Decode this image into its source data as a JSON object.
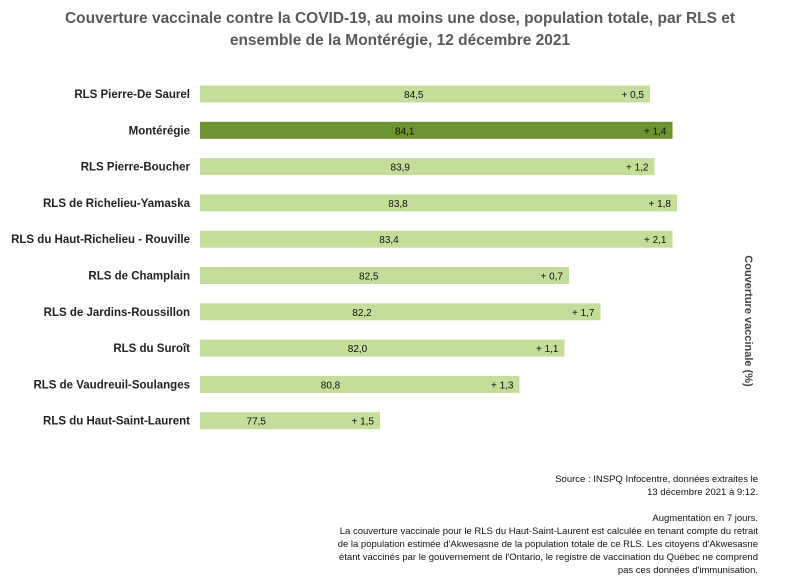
{
  "chart_data": {
    "type": "bar",
    "orientation": "horizontal",
    "stacked": true,
    "title": "Couverture vaccinale contre la COVID-19, au moins une dose, population totale, par RLS et ensemble de la Montérégie, 12 décembre 2021",
    "ylabel": "Couverture vaccinale (%)",
    "categories": [
      "RLS Pierre-De Saurel",
      "Montérégie",
      "RLS Pierre-Boucher",
      "RLS de Richelieu-Yamaska",
      "RLS du Haut-Richelieu - Rouville",
      "RLS de Champlain",
      "RLS de Jardins-Roussillon",
      "RLS du Suroît",
      "RLS de Vaudreuil-Soulanges",
      "RLS du Haut-Saint-Laurent"
    ],
    "values": [
      84.5,
      84.1,
      83.9,
      83.8,
      83.4,
      82.5,
      82.2,
      82.0,
      80.8,
      77.5
    ],
    "value_labels": [
      "84,5",
      "84,1",
      "83,9",
      "83,8",
      "83,4",
      "82,5",
      "82,2",
      "82,0",
      "80,8",
      "77,5"
    ],
    "increase_labels": [
      "+ 0,5",
      "+ 1,4",
      "+ 1,2",
      "+ 1,8",
      "+ 2,1",
      "+ 0,7",
      "+ 1,7",
      "+ 1,1",
      "+ 1,3",
      "+ 1,5"
    ],
    "colors": {
      "bar": "#c3dd9a",
      "highlight": "#6d9330",
      "highlight_text": "#ffffff"
    },
    "highlight_category": "Montérégie"
  },
  "notes": {
    "source_line1": "Source : INSPQ Infocentre, données extraites le",
    "source_line2": "13 décembre 2021 à  9:12.",
    "footnote_1": "Augmentation en 7 jours.",
    "footnote_2": "La couverture vaccinale pour le RLS du Haut-Saint-Laurent est calculée en tenant compte du retrait",
    "footnote_3": "de la population estimée d'Akwesasne de la population totale de ce RLS. Les citoyens d'Akwesasne",
    "footnote_4": "étant vaccinés par le gouvernement de l'Ontario, le registre de vaccination du Québec ne comprend",
    "footnote_5": "pas ces données d'immunisation."
  }
}
